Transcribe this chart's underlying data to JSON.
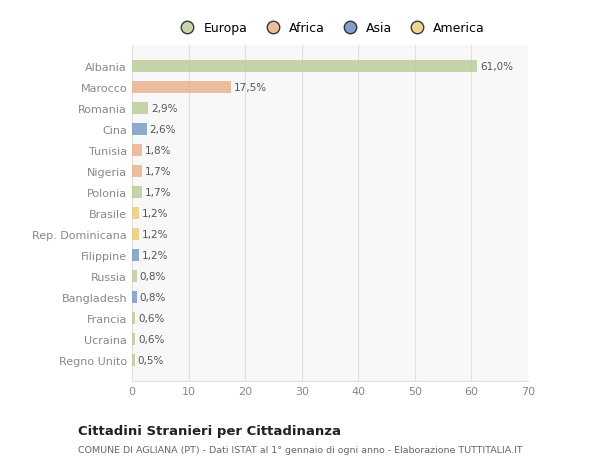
{
  "categories": [
    "Albania",
    "Marocco",
    "Romania",
    "Cina",
    "Tunisia",
    "Nigeria",
    "Polonia",
    "Brasile",
    "Rep. Dominicana",
    "Filippine",
    "Russia",
    "Bangladesh",
    "Francia",
    "Ucraina",
    "Regno Unito"
  ],
  "values": [
    61.0,
    17.5,
    2.9,
    2.6,
    1.8,
    1.7,
    1.7,
    1.2,
    1.2,
    1.2,
    0.8,
    0.8,
    0.6,
    0.6,
    0.5
  ],
  "labels": [
    "61,0%",
    "17,5%",
    "2,9%",
    "2,6%",
    "1,8%",
    "1,7%",
    "1,7%",
    "1,2%",
    "1,2%",
    "1,2%",
    "0,8%",
    "0,8%",
    "0,6%",
    "0,6%",
    "0,5%"
  ],
  "colors": [
    "#b5c98e",
    "#e8a97e",
    "#b5c98e",
    "#6b8fbf",
    "#e8a97e",
    "#e8a97e",
    "#b5c98e",
    "#e8c96e",
    "#e8c96e",
    "#6b8fbf",
    "#b5c98e",
    "#6b8fbf",
    "#b5c98e",
    "#b5c98e",
    "#b5c98e"
  ],
  "legend_labels": [
    "Europa",
    "Africa",
    "Asia",
    "America"
  ],
  "legend_colors": [
    "#b5c98e",
    "#e8a97e",
    "#5b7fbf",
    "#e8c96e"
  ],
  "title": "Cittadini Stranieri per Cittadinanza",
  "subtitle": "COMUNE DI AGLIANA (PT) - Dati ISTAT al 1° gennaio di ogni anno - Elaborazione TUTTITALIA.IT",
  "xlim": [
    0,
    70
  ],
  "xticks": [
    0,
    10,
    20,
    30,
    40,
    50,
    60,
    70
  ],
  "bg_color": "#ffffff",
  "plot_bg_color": "#f8f8f8",
  "grid_color": "#e0e0e0",
  "bar_alpha": 0.75,
  "bar_height": 0.55
}
